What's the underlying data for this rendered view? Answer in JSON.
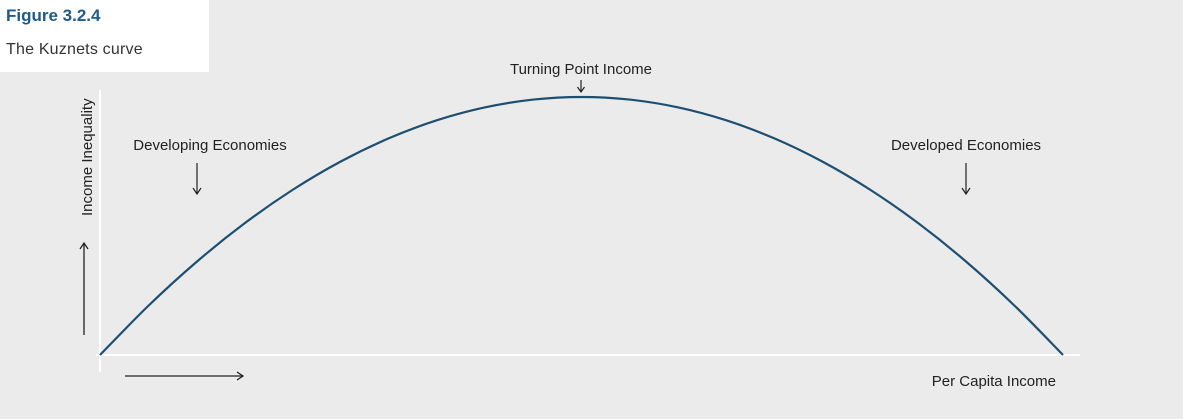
{
  "figure": {
    "label": "Figure 3.2.4",
    "title": "The Kuznets curve"
  },
  "colors": {
    "background": "#ebebeb",
    "curve": "#1d4f73",
    "label": "#1f5a8a",
    "axis": "#ffffff"
  },
  "chart_data": {
    "type": "line",
    "title": "The Kuznets curve",
    "xlabel": "Per Capita Income",
    "ylabel": "Income Inequality",
    "xlim": [
      0,
      1
    ],
    "ylim": [
      0,
      1
    ],
    "series": [
      {
        "x": [
          0.0,
          0.05,
          0.1,
          0.15,
          0.2,
          0.25,
          0.3,
          0.35,
          0.4,
          0.45,
          0.5,
          0.55,
          0.6,
          0.65,
          0.7,
          0.75,
          0.8,
          0.85,
          0.9,
          0.95,
          1.0
        ],
        "values": [
          0.0,
          0.19,
          0.36,
          0.51,
          0.64,
          0.75,
          0.84,
          0.91,
          0.96,
          0.99,
          1.0,
          0.99,
          0.96,
          0.91,
          0.84,
          0.75,
          0.64,
          0.51,
          0.36,
          0.19,
          0.0
        ]
      }
    ],
    "annotations": [
      {
        "text": "Turning Point Income",
        "x": 0.5,
        "y": 1.0
      },
      {
        "text": "Developing Economies",
        "x": 0.1,
        "y": 0.36
      },
      {
        "text": "Developed Economies",
        "x": 0.9,
        "y": 0.36
      }
    ],
    "grid": false,
    "legend": "none"
  }
}
